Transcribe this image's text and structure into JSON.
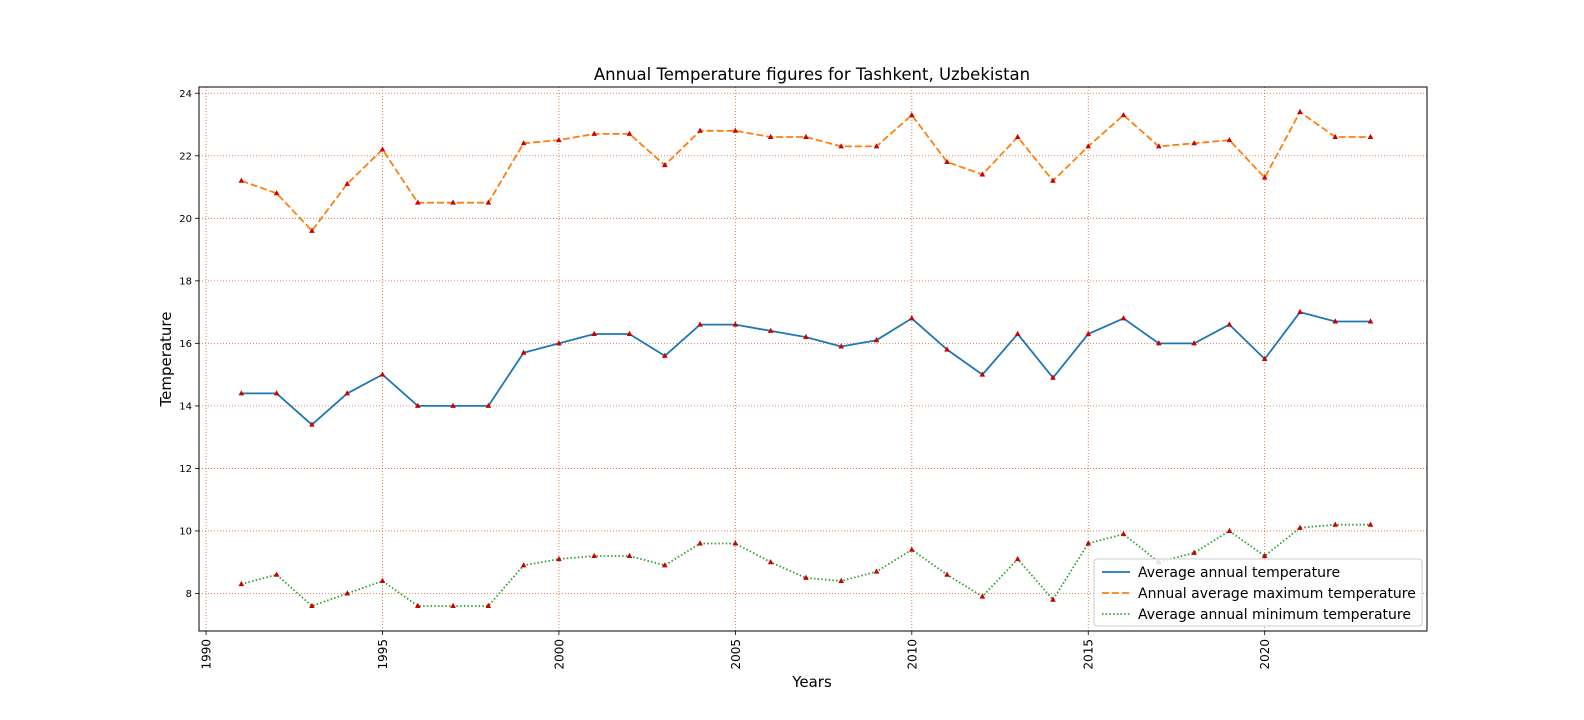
{
  "chart_data": {
    "type": "line",
    "title": "Annual Temperature figures for Tashkent, Uzbekistan",
    "xlabel": "Years",
    "ylabel": "Temperature",
    "xlim": [
      1989.8,
      2024.6
    ],
    "ylim": [
      6.8,
      24.2
    ],
    "xticks": [
      1990,
      1995,
      2000,
      2005,
      2010,
      2015,
      2020
    ],
    "yticks": [
      8,
      10,
      12,
      14,
      16,
      18,
      20,
      22,
      24
    ],
    "grid": true,
    "grid_color": "#e8602c",
    "marker_color": "#cc0000",
    "legend_position": "lower-right",
    "x": [
      1991,
      1992,
      1993,
      1994,
      1995,
      1996,
      1997,
      1998,
      1999,
      2000,
      2001,
      2002,
      2003,
      2004,
      2005,
      2006,
      2007,
      2008,
      2009,
      2010,
      2011,
      2012,
      2013,
      2014,
      2015,
      2016,
      2017,
      2018,
      2019,
      2020,
      2021,
      2022,
      2023
    ],
    "series": [
      {
        "name": "Average annual temperature",
        "color": "#1f77b4",
        "style": "solid",
        "values": [
          14.4,
          14.4,
          13.4,
          14.4,
          15.0,
          14.0,
          14.0,
          14.0,
          15.7,
          16.0,
          16.3,
          16.3,
          15.6,
          16.6,
          16.6,
          16.4,
          16.2,
          15.9,
          16.1,
          16.8,
          15.8,
          15.0,
          16.3,
          14.9,
          16.3,
          16.8,
          16.0,
          16.0,
          16.6,
          15.5,
          17.0,
          16.7,
          16.7
        ]
      },
      {
        "name": "Annual average maximum temperature",
        "color": "#ff7f0e",
        "style": "dashed",
        "values": [
          21.2,
          20.8,
          19.6,
          21.1,
          22.2,
          20.5,
          20.5,
          20.5,
          22.4,
          22.5,
          22.7,
          22.7,
          21.7,
          22.8,
          22.8,
          22.6,
          22.6,
          22.3,
          22.3,
          23.3,
          21.8,
          21.4,
          22.6,
          21.2,
          22.3,
          23.3,
          22.3,
          22.4,
          22.5,
          21.3,
          23.4,
          22.6,
          22.6
        ]
      },
      {
        "name": "Average annual minimum temperature",
        "color": "#2ca02c",
        "style": "dotted",
        "values": [
          8.3,
          8.6,
          7.6,
          8.0,
          8.4,
          7.6,
          7.6,
          7.6,
          8.9,
          9.1,
          9.2,
          9.2,
          8.9,
          9.6,
          9.6,
          9.0,
          8.5,
          8.4,
          8.7,
          9.4,
          8.6,
          7.9,
          9.1,
          7.8,
          9.6,
          9.9,
          9.0,
          9.3,
          10.0,
          9.2,
          10.1,
          10.2,
          10.2
        ]
      }
    ]
  }
}
